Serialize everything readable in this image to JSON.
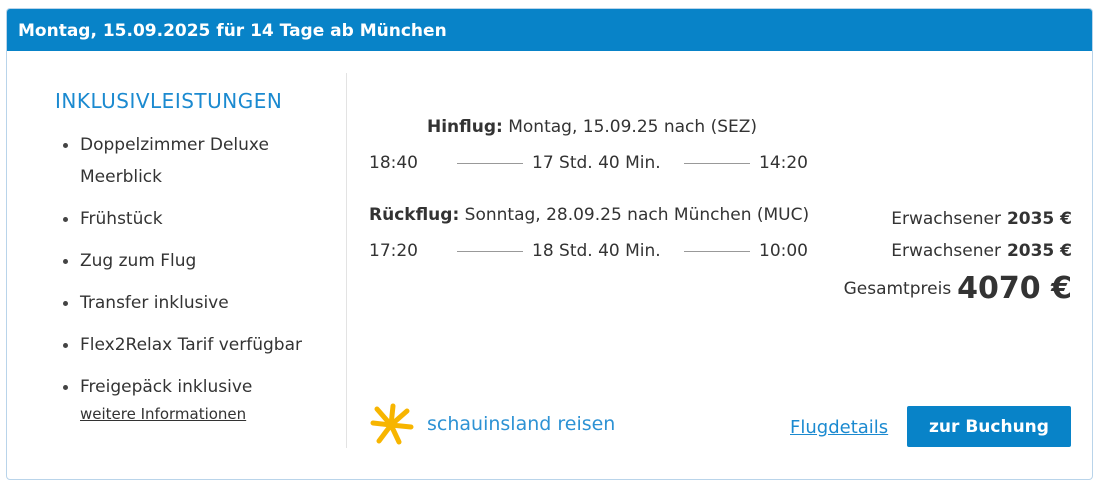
{
  "header": {
    "title": "Montag, 15.09.2025 für 14 Tage ab München"
  },
  "inclusions": {
    "title": "INKLUSIVLEISTUNGEN",
    "items": [
      "Doppelzimmer Deluxe Meerblick",
      "Frühstück",
      "Zug zum Flug",
      "Transfer inklusive",
      "Flex2Relax Tarif verfügbar",
      "Freigepäck inklusive"
    ],
    "more_link": "weitere Informationen"
  },
  "outbound": {
    "label": "Hinflug:",
    "info": "Montag, 15.09.25 nach (SEZ)",
    "departure": "18:40",
    "duration": "17 Std. 40 Min.",
    "arrival": "14:20"
  },
  "return": {
    "label": "Rückflug:",
    "info": "Sonntag, 28.09.25 nach München (MUC)",
    "departure": "17:20",
    "duration": "18 Std. 40 Min.",
    "arrival": "10:00"
  },
  "prices": [
    {
      "label": "Erwachsener",
      "amount": "2035 €"
    },
    {
      "label": "Erwachsener",
      "amount": "2035 €"
    }
  ],
  "total": {
    "label": "Gesamtpreis",
    "amount": "4070 €"
  },
  "brand": {
    "name": "schauinsland reisen",
    "colors": {
      "sun": "#f7b500",
      "text": "#2d92d4"
    }
  },
  "actions": {
    "details_link": "Flugdetails",
    "book_button": "zur Buchung"
  },
  "colors": {
    "accent": "#0883c8"
  }
}
